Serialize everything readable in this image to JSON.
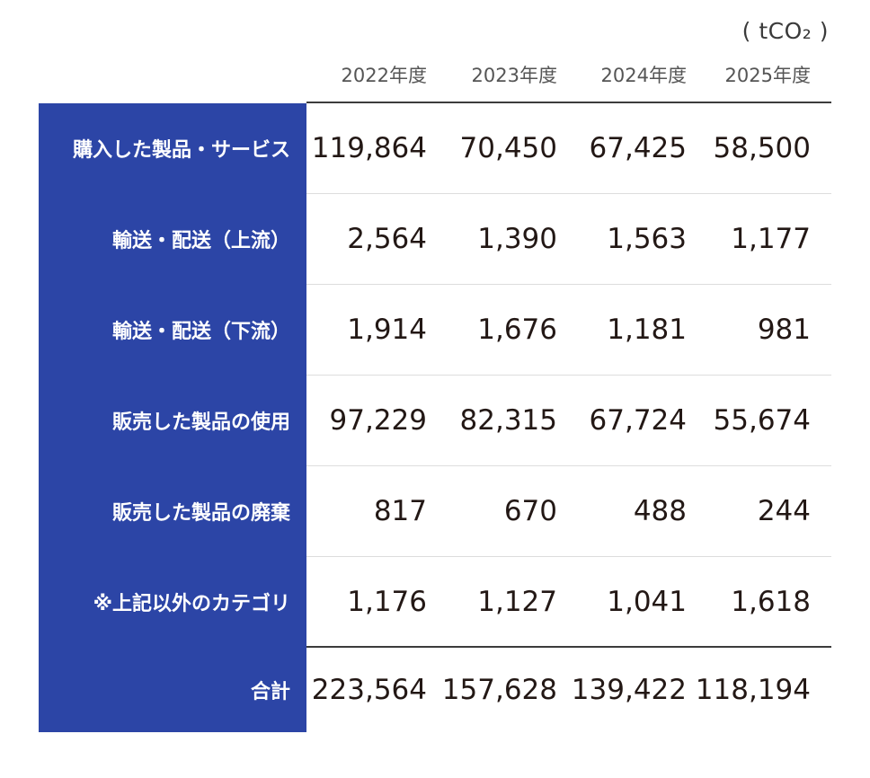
{
  "unit_label": "( tCO₂ )",
  "chart_data": {
    "type": "table",
    "columns": [
      "2022年度",
      "2023年度",
      "2024年度",
      "2025年度"
    ],
    "rows": [
      {
        "label": "購入した製品・サービス",
        "values": [
          "119,864",
          "70,450",
          "67,425",
          "58,500"
        ]
      },
      {
        "label": "輸送・配送（上流）",
        "values": [
          "2,564",
          "1,390",
          "1,563",
          "1,177"
        ]
      },
      {
        "label": "輸送・配送（下流）",
        "values": [
          "1,914",
          "1,676",
          "1,181",
          "981"
        ]
      },
      {
        "label": "販売した製品の使用",
        "values": [
          "97,229",
          "82,315",
          "67,724",
          "55,674"
        ]
      },
      {
        "label": "販売した製品の廃棄",
        "values": [
          "817",
          "670",
          "488",
          "244"
        ]
      },
      {
        "label": "※上記以外のカテゴリ",
        "values": [
          "1,176",
          "1,127",
          "1,041",
          "1,618"
        ]
      }
    ],
    "total": {
      "label": "合計",
      "values": [
        "223,564",
        "157,628",
        "139,422",
        "118,194"
      ]
    }
  }
}
